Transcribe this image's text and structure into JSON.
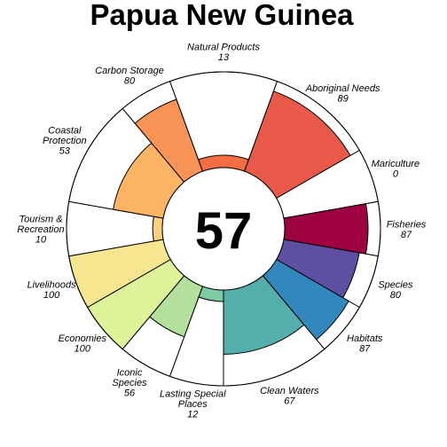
{
  "chart_data": {
    "type": "flower",
    "title": "Papua New Guinea",
    "center_score": "57",
    "max_value": 100,
    "petals": [
      {
        "label": [
          "Natural Products"
        ],
        "value": 13,
        "value_label": "13",
        "color": "#f46d43",
        "start_deg": -20,
        "end_deg": 20
      },
      {
        "label": [
          "Aboriginal Needs"
        ],
        "value": 89,
        "value_label": "89",
        "color": "#e8594a",
        "start_deg": 20,
        "end_deg": 60
      },
      {
        "label": [
          "Mariculture"
        ],
        "value": 0,
        "value_label": "0",
        "color": "#d0364e",
        "start_deg": 60,
        "end_deg": 80
      },
      {
        "label": [
          "Fisheries"
        ],
        "value": 87,
        "value_label": "87",
        "color": "#9e0142",
        "start_deg": 80,
        "end_deg": 100
      },
      {
        "label": [
          "Species"
        ],
        "value": 80,
        "value_label": "80",
        "color": "#5e4fa2",
        "start_deg": 100,
        "end_deg": 120
      },
      {
        "label": [
          "Habitats"
        ],
        "value": 87,
        "value_label": "87",
        "color": "#3288bd",
        "start_deg": 120,
        "end_deg": 140
      },
      {
        "label": [
          "Clean Waters"
        ],
        "value": 67,
        "value_label": "67",
        "color": "#54aeac",
        "start_deg": 140,
        "end_deg": 180
      },
      {
        "label": [
          "Lasting Special",
          "Places"
        ],
        "value": 12,
        "value_label": "12",
        "color": "#7ccba4",
        "start_deg": 180,
        "end_deg": 200
      },
      {
        "label": [
          "Iconic",
          "Species"
        ],
        "value": 56,
        "value_label": "56",
        "color": "#b3e09d",
        "start_deg": 200,
        "end_deg": 220
      },
      {
        "label": [
          "Economies"
        ],
        "value": 100,
        "value_label": "100",
        "color": "#def29a",
        "start_deg": 220,
        "end_deg": 240
      },
      {
        "label": [
          "Livelihoods"
        ],
        "value": 100,
        "value_label": "100",
        "color": "#f7e690",
        "start_deg": 240,
        "end_deg": 260
      },
      {
        "label": [
          "Tourism &",
          "Recreation"
        ],
        "value": 10,
        "value_label": "10",
        "color": "#fdd07e",
        "start_deg": 260,
        "end_deg": 280
      },
      {
        "label": [
          "Coastal",
          "Protection"
        ],
        "value": 53,
        "value_label": "53",
        "color": "#fdb465",
        "start_deg": 280,
        "end_deg": 320
      },
      {
        "label": [
          "Carbon Storage"
        ],
        "value": 80,
        "value_label": "80",
        "color": "#f99356",
        "start_deg": 320,
        "end_deg": 340
      }
    ]
  }
}
